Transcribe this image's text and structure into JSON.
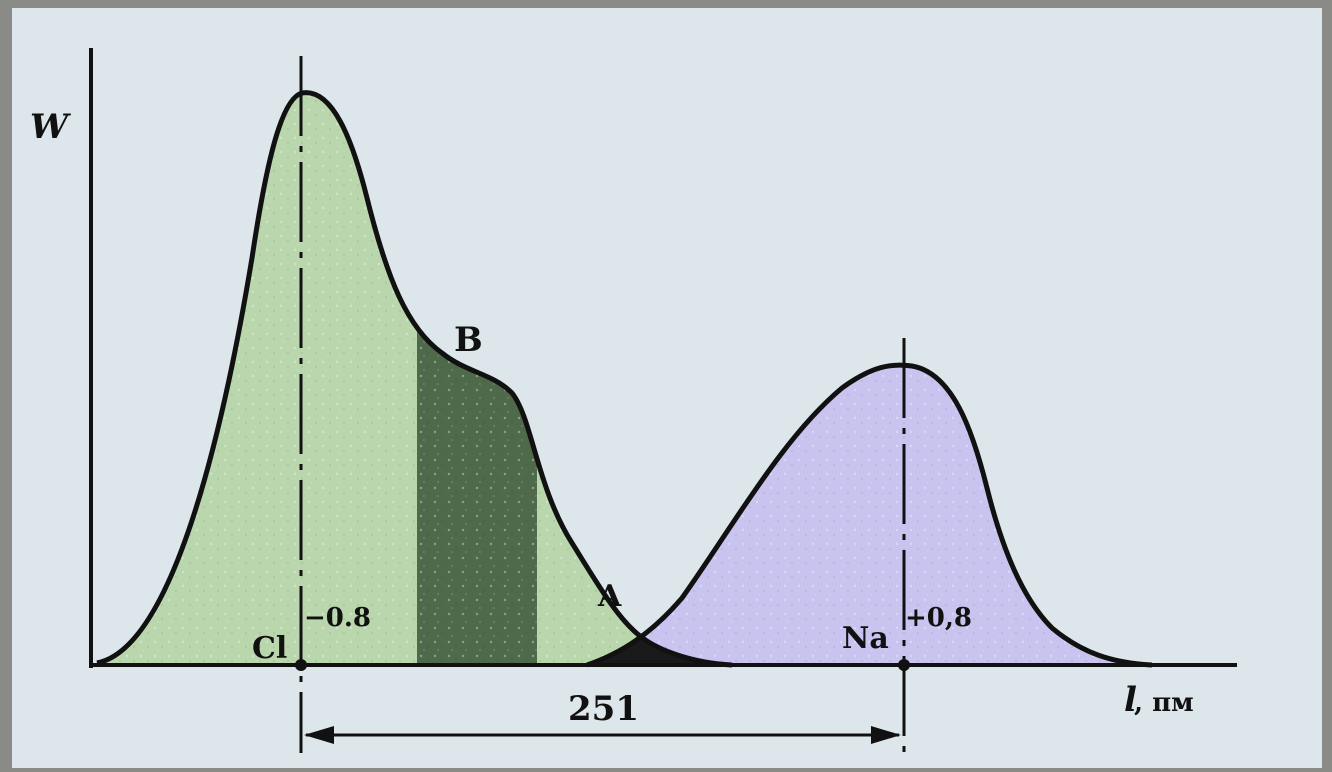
{
  "labels": {
    "y_axis": "W",
    "x_axis_symbol": "l",
    "x_axis_unit": ", пм",
    "point_b": "B",
    "point_a": "A",
    "cl_ion": "Cl",
    "cl_charge": "−0.8",
    "na_ion": "Na",
    "na_charge": "+0,8",
    "distance": "251"
  },
  "colors": {
    "cl_fill": "#b9d6ad",
    "cl_dark_band": "#4f6a4a",
    "na_fill": "#c8c3ef",
    "overlap_fill": "#1a1a1a",
    "outline": "#111111",
    "background": "#dde6ea"
  }
}
